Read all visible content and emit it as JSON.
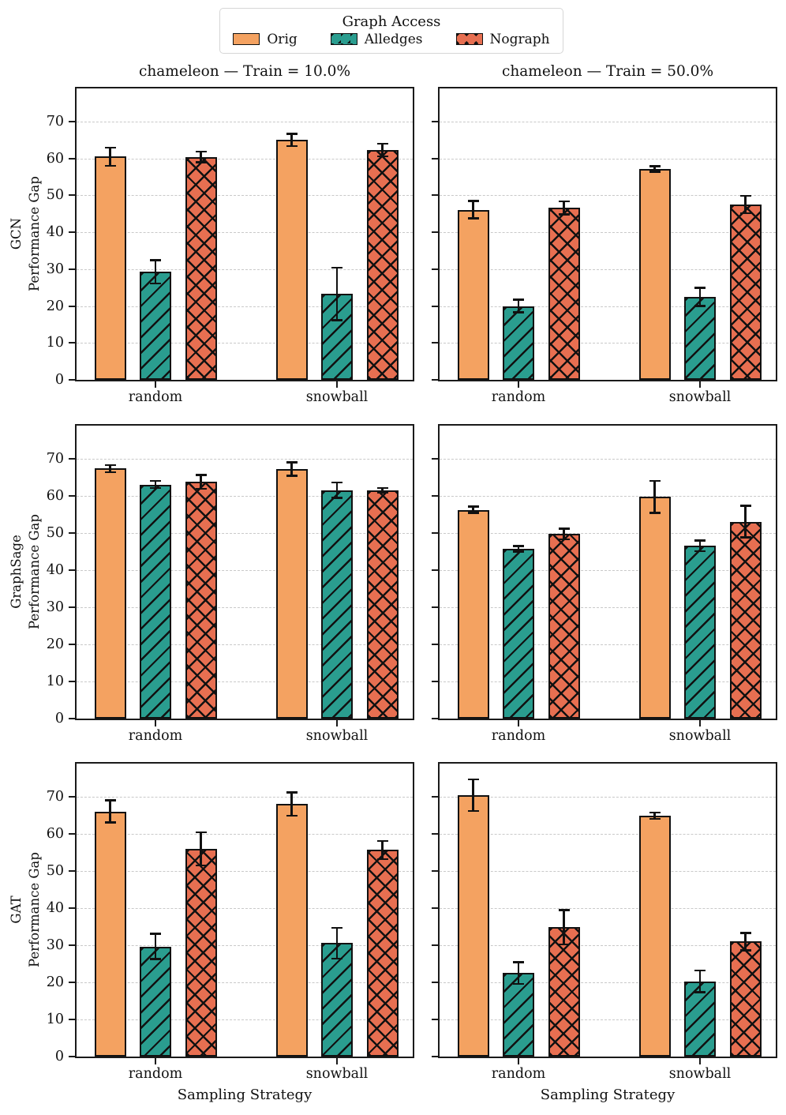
{
  "legend": {
    "title": "Graph Access",
    "entries": [
      {
        "label": "Orig",
        "color": "#F4A261",
        "hatch": "none"
      },
      {
        "label": "Alledges",
        "color": "#2A9D8F",
        "hatch": "diag"
      },
      {
        "label": "Nograph",
        "color": "#E76F51",
        "hatch": "cross"
      }
    ]
  },
  "col_titles": [
    "chameleon — Train = 10.0%",
    "chameleon — Train = 50.0%"
  ],
  "row_labels": [
    [
      "GCN",
      "Performance Gap"
    ],
    [
      "GraphSage",
      "Performance Gap"
    ],
    [
      "GAT",
      "Performance Gap"
    ]
  ],
  "xlabel": "Sampling Strategy",
  "yticks": [
    0,
    10,
    20,
    30,
    40,
    50,
    60,
    70
  ],
  "ylim": [
    0,
    79
  ],
  "grid": "dashed horizontal",
  "chart_data": [
    {
      "type": "bar",
      "row": 0,
      "col": 0,
      "title": "chameleon — Train = 10.0%",
      "ylabel": "GCN Performance Gap",
      "categories": [
        "random",
        "snowball"
      ],
      "series": [
        {
          "name": "Orig",
          "values": [
            60.5,
            65.0
          ],
          "errors": [
            2.5,
            1.7
          ]
        },
        {
          "name": "Alledges",
          "values": [
            29.3,
            23.3
          ],
          "errors": [
            3.2,
            7.2
          ]
        },
        {
          "name": "Nograph",
          "values": [
            60.4,
            62.3
          ],
          "errors": [
            1.5,
            1.8
          ]
        }
      ]
    },
    {
      "type": "bar",
      "row": 0,
      "col": 1,
      "title": "chameleon — Train = 50.0%",
      "ylabel": "GCN Performance Gap",
      "categories": [
        "random",
        "snowball"
      ],
      "series": [
        {
          "name": "Orig",
          "values": [
            46.1,
            57.2
          ],
          "errors": [
            2.4,
            0.8
          ]
        },
        {
          "name": "Alledges",
          "values": [
            20.0,
            22.5
          ],
          "errors": [
            1.8,
            2.5
          ]
        },
        {
          "name": "Nograph",
          "values": [
            46.6,
            47.5
          ],
          "errors": [
            1.8,
            2.4
          ]
        }
      ]
    },
    {
      "type": "bar",
      "row": 1,
      "col": 0,
      "title": "chameleon — Train = 10.0%",
      "ylabel": "GraphSage Performance Gap",
      "categories": [
        "random",
        "snowball"
      ],
      "series": [
        {
          "name": "Orig",
          "values": [
            67.4,
            67.3
          ],
          "errors": [
            1.0,
            1.9
          ]
        },
        {
          "name": "Alledges",
          "values": [
            63.1,
            61.6
          ],
          "errors": [
            1.0,
            2.1
          ]
        },
        {
          "name": "Nograph",
          "values": [
            63.8,
            61.6
          ],
          "errors": [
            1.9,
            0.6
          ]
        }
      ]
    },
    {
      "type": "bar",
      "row": 1,
      "col": 1,
      "title": "chameleon — Train = 50.0%",
      "ylabel": "GraphSage Performance Gap",
      "categories": [
        "random",
        "snowball"
      ],
      "series": [
        {
          "name": "Orig",
          "values": [
            56.3,
            59.8
          ],
          "errors": [
            0.9,
            4.4
          ]
        },
        {
          "name": "Alledges",
          "values": [
            45.8,
            46.6
          ],
          "errors": [
            0.8,
            1.5
          ]
        },
        {
          "name": "Nograph",
          "values": [
            49.8,
            53.1
          ],
          "errors": [
            1.5,
            4.3
          ]
        }
      ]
    },
    {
      "type": "bar",
      "row": 2,
      "col": 0,
      "title": "chameleon — Train = 10.0%",
      "ylabel": "GAT Performance Gap",
      "categories": [
        "random",
        "snowball"
      ],
      "series": [
        {
          "name": "Orig",
          "values": [
            66.1,
            68.1
          ],
          "errors": [
            3.0,
            3.2
          ]
        },
        {
          "name": "Alledges",
          "values": [
            29.7,
            30.6
          ],
          "errors": [
            3.5,
            4.2
          ]
        },
        {
          "name": "Nograph",
          "values": [
            56.0,
            55.7
          ],
          "errors": [
            4.5,
            2.5
          ]
        }
      ]
    },
    {
      "type": "bar",
      "row": 2,
      "col": 1,
      "title": "chameleon — Train = 50.0%",
      "ylabel": "GAT Performance Gap",
      "categories": [
        "random",
        "snowball"
      ],
      "series": [
        {
          "name": "Orig",
          "values": [
            70.5,
            64.9
          ],
          "errors": [
            4.3,
            0.9
          ]
        },
        {
          "name": "Alledges",
          "values": [
            22.5,
            20.3
          ],
          "errors": [
            3.0,
            3.0
          ]
        },
        {
          "name": "Nograph",
          "values": [
            34.9,
            31.0
          ],
          "errors": [
            4.7,
            2.4
          ]
        }
      ]
    }
  ]
}
